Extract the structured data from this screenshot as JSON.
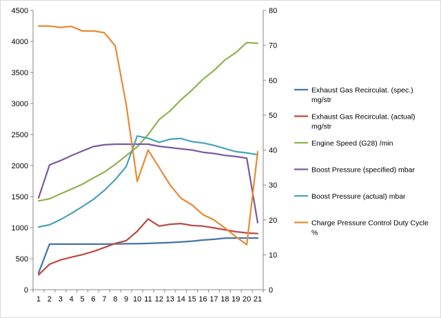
{
  "chart_data": {
    "type": "line",
    "title": "",
    "xlabel": "",
    "ylabel": "",
    "x": [
      1,
      2,
      3,
      4,
      5,
      6,
      7,
      8,
      9,
      10,
      11,
      12,
      13,
      14,
      15,
      16,
      17,
      18,
      19,
      20,
      21
    ],
    "y_left": {
      "lim": [
        0,
        4500
      ],
      "ticks": [
        0,
        500,
        1000,
        1500,
        2000,
        2500,
        3000,
        3500,
        4000,
        4500
      ]
    },
    "y_right": {
      "lim": [
        0,
        80
      ],
      "ticks": [
        0,
        10,
        20,
        30,
        40,
        50,
        60,
        70,
        80
      ]
    },
    "grid": false,
    "legend_position": "right",
    "series": [
      {
        "name": "Exhaust Gas Recirculat. (spec.)",
        "unit": "mg/str",
        "axis": "left",
        "color": "#4472a8",
        "values": [
          270,
          735,
          735,
          735,
          735,
          735,
          735,
          738,
          740,
          742,
          745,
          752,
          760,
          770,
          782,
          800,
          812,
          830,
          832,
          832,
          832
        ]
      },
      {
        "name": "Exhaust Gas Recirculat. (actual)",
        "unit": "mg/str",
        "axis": "left",
        "color": "#b94a47",
        "values": [
          240,
          410,
          480,
          525,
          565,
          615,
          680,
          745,
          790,
          940,
          1140,
          1025,
          1055,
          1065,
          1035,
          1025,
          995,
          965,
          935,
          915,
          905
        ]
      },
      {
        "name": "Engine Speed (G28)",
        "unit": "/min",
        "axis": "left",
        "color": "#8fb34f",
        "values": [
          1430,
          1465,
          1545,
          1620,
          1700,
          1800,
          1895,
          2020,
          2160,
          2300,
          2500,
          2740,
          2880,
          3060,
          3215,
          3390,
          3530,
          3700,
          3820,
          3980,
          3970
        ]
      },
      {
        "name": "Boost Pressure (specified)",
        "unit": "mbar",
        "axis": "left",
        "color": "#7a59a1",
        "values": [
          1480,
          2010,
          2080,
          2160,
          2235,
          2305,
          2335,
          2345,
          2345,
          2345,
          2345,
          2310,
          2290,
          2270,
          2250,
          2215,
          2195,
          2165,
          2145,
          2120,
          1080
        ]
      },
      {
        "name": "Boost Pressure (actual)",
        "unit": "mbar",
        "axis": "left",
        "color": "#47a3b8",
        "values": [
          1010,
          1045,
          1130,
          1230,
          1340,
          1455,
          1600,
          1775,
          1985,
          2475,
          2440,
          2375,
          2425,
          2435,
          2385,
          2365,
          2325,
          2275,
          2225,
          2205,
          2175
        ]
      },
      {
        "name": "Charge Pressure Control Duty Cycle",
        "unit": "%",
        "axis": "right",
        "color": "#e88a35",
        "values": [
          75.5,
          75.5,
          75.1,
          75.4,
          74.1,
          74.1,
          73.6,
          69.8,
          53,
          31,
          40,
          35,
          30,
          26.2,
          24.3,
          21.5,
          20,
          17.7,
          15.2,
          12.9,
          39.5
        ]
      }
    ]
  }
}
